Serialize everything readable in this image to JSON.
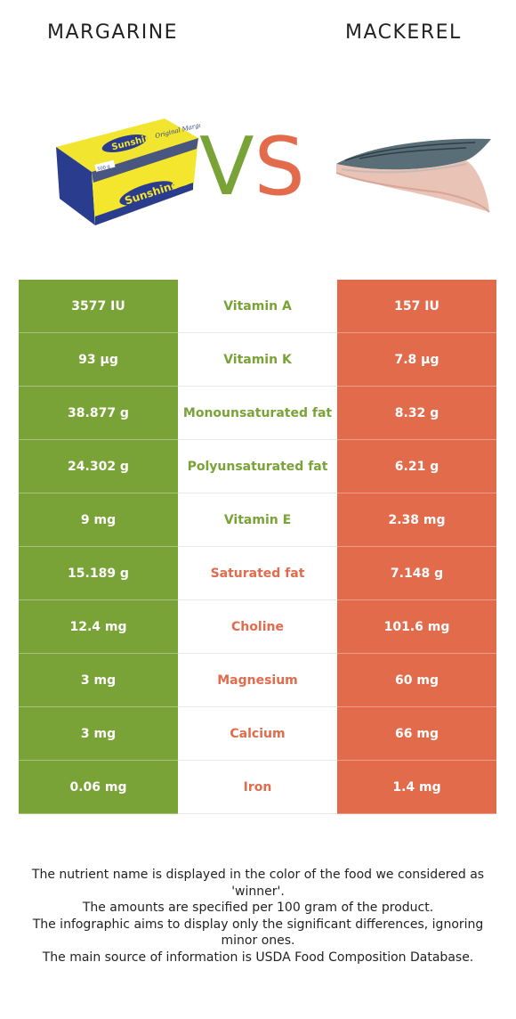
{
  "header": {
    "left_title": "MARGARINE",
    "right_title": "MACKEREL",
    "vs_v": "V",
    "vs_s": "S"
  },
  "colors": {
    "left": "#79a336",
    "right": "#e26b4c"
  },
  "rows": [
    {
      "left": "3577 IU",
      "name": "Vitamin A",
      "right": "157 IU",
      "winner": "left"
    },
    {
      "left": "93 µg",
      "name": "Vitamin K",
      "right": "7.8 µg",
      "winner": "left"
    },
    {
      "left": "38.877 g",
      "name": "Monounsaturated fat",
      "right": "8.32 g",
      "winner": "left"
    },
    {
      "left": "24.302 g",
      "name": "Polyunsaturated fat",
      "right": "6.21 g",
      "winner": "left"
    },
    {
      "left": "9 mg",
      "name": "Vitamin E",
      "right": "2.38 mg",
      "winner": "left"
    },
    {
      "left": "15.189 g",
      "name": "Saturated fat",
      "right": "7.148 g",
      "winner": "right"
    },
    {
      "left": "12.4 mg",
      "name": "Choline",
      "right": "101.6 mg",
      "winner": "right"
    },
    {
      "left": "3 mg",
      "name": "Magnesium",
      "right": "60 mg",
      "winner": "right"
    },
    {
      "left": "3 mg",
      "name": "Calcium",
      "right": "66 mg",
      "winner": "right"
    },
    {
      "left": "0.06 mg",
      "name": "Iron",
      "right": "1.4 mg",
      "winner": "right"
    }
  ],
  "footer": {
    "line1": "The nutrient name is displayed in the color of the food we considered as 'winner'.",
    "line2": "The amounts are specified per 100 gram of the product.",
    "line3": "The infographic aims to display only the significant differences, ignoring minor ones.",
    "line4": "The main source of information is USDA Food Composition Database."
  },
  "images": {
    "margarine_logo_text": "Sunshine D",
    "margarine_sub_text": "Original Margarine",
    "margarine_weight": "500 g"
  }
}
